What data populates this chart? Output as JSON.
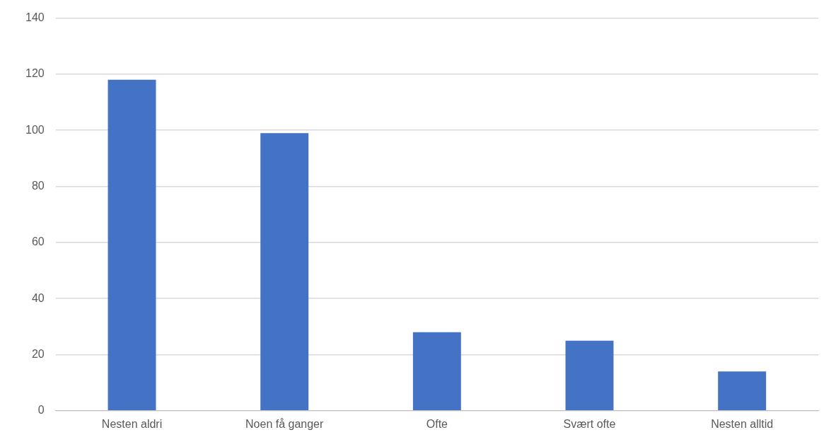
{
  "chart_data": {
    "type": "bar",
    "categories": [
      "Nesten aldri",
      "Noen få ganger",
      "Ofte",
      "Svært ofte",
      "Nesten alltid"
    ],
    "values": [
      118,
      99,
      28,
      25,
      14
    ],
    "color": "#4472c4",
    "ylim": [
      0,
      140
    ],
    "yticks": [
      0,
      20,
      40,
      60,
      80,
      100,
      120,
      140
    ],
    "grid": "y",
    "legend": false
  }
}
